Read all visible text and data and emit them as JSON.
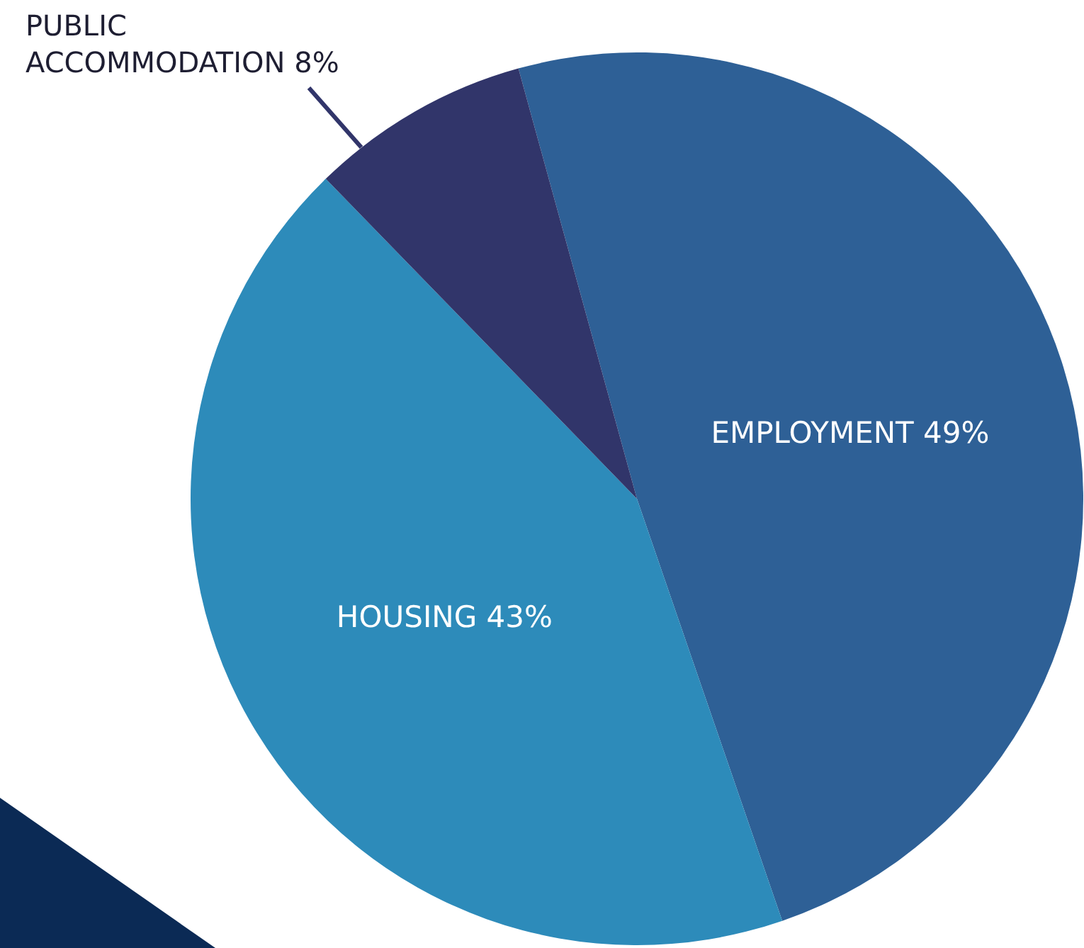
{
  "chart_data": {
    "type": "pie",
    "categories": [
      "EMPLOYMENT",
      "HOUSING",
      "PUBLIC ACCOMMODATION"
    ],
    "values": [
      49,
      43,
      8
    ],
    "colors": [
      "#2e6096",
      "#2d8bba",
      "#31356a"
    ],
    "value_labels": [
      "49%",
      "43%",
      "8%"
    ],
    "legend": false
  }
}
